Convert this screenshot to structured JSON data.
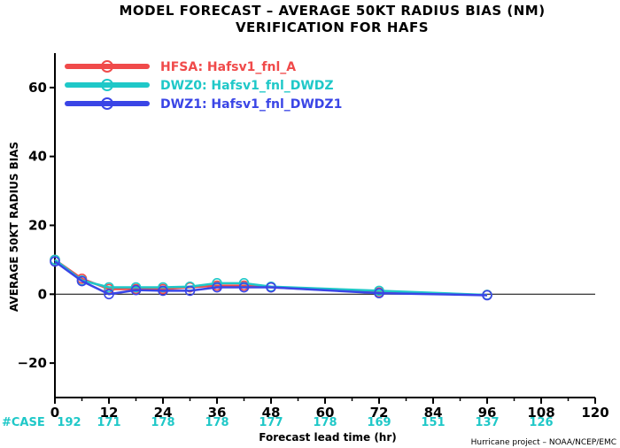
{
  "title": {
    "line1": "MODEL FORECAST – AVERAGE 50KT RADIUS BIAS (NM)",
    "line2": "VERIFICATION FOR HAFS"
  },
  "credit": "Hurricane project – NOAA/NCEP/EMC",
  "case_label": "#CASE",
  "case_counts": [
    {
      "x": 0,
      "n": "192"
    },
    {
      "x": 12,
      "n": "171"
    },
    {
      "x": 24,
      "n": "178"
    },
    {
      "x": 36,
      "n": "178"
    },
    {
      "x": 48,
      "n": "177"
    },
    {
      "x": 60,
      "n": "178"
    },
    {
      "x": 72,
      "n": "169"
    },
    {
      "x": 84,
      "n": "151"
    },
    {
      "x": 96,
      "n": "137"
    },
    {
      "x": 108,
      "n": "126"
    }
  ],
  "colors": {
    "axis": "#000000",
    "zero_line": "#000000",
    "case_text": "#1fc8c8"
  },
  "chart_data": {
    "type": "line",
    "title": "MODEL FORECAST – AVERAGE 50KT RADIUS BIAS (NM) VERIFICATION FOR HAFS",
    "xlabel": "Forecast lead time (hr)",
    "ylabel": "AVERAGE 50KT RADIUS BIAS",
    "xlim": [
      0,
      120
    ],
    "ylim": [
      -30,
      70
    ],
    "xticks": [
      0,
      12,
      24,
      36,
      48,
      60,
      72,
      84,
      96,
      108,
      120
    ],
    "yticks": [
      -20,
      0,
      20,
      40,
      60
    ],
    "grid": false,
    "zero_line": true,
    "legend_position": "top-left",
    "series": [
      {
        "name": "HFSA: Hafsv1_fnl_A",
        "color": "#f04a4a",
        "x": [
          0,
          6,
          12,
          18,
          24,
          30,
          36,
          42,
          48,
          72,
          96
        ],
        "y": [
          10,
          4.5,
          1.5,
          1.5,
          1.5,
          2,
          2.5,
          2.5,
          2,
          0.5,
          -0.2
        ]
      },
      {
        "name": "DWZ0: Hafsv1_fnl_DWDZ",
        "color": "#1fc8c8",
        "x": [
          0,
          6,
          12,
          18,
          24,
          30,
          36,
          42,
          48,
          72,
          96
        ],
        "y": [
          10,
          4,
          2,
          2,
          2,
          2.2,
          3.2,
          3.2,
          2.2,
          1,
          -0.2
        ]
      },
      {
        "name": "DWZ1: Hafsv1_fnl_DWDZ1",
        "color": "#3a45e6",
        "x": [
          0,
          6,
          12,
          18,
          24,
          30,
          36,
          42,
          48,
          72,
          96
        ],
        "y": [
          9.5,
          3.8,
          0,
          1.2,
          1,
          1,
          2,
          2,
          2,
          0.3,
          -0.3
        ]
      }
    ]
  }
}
